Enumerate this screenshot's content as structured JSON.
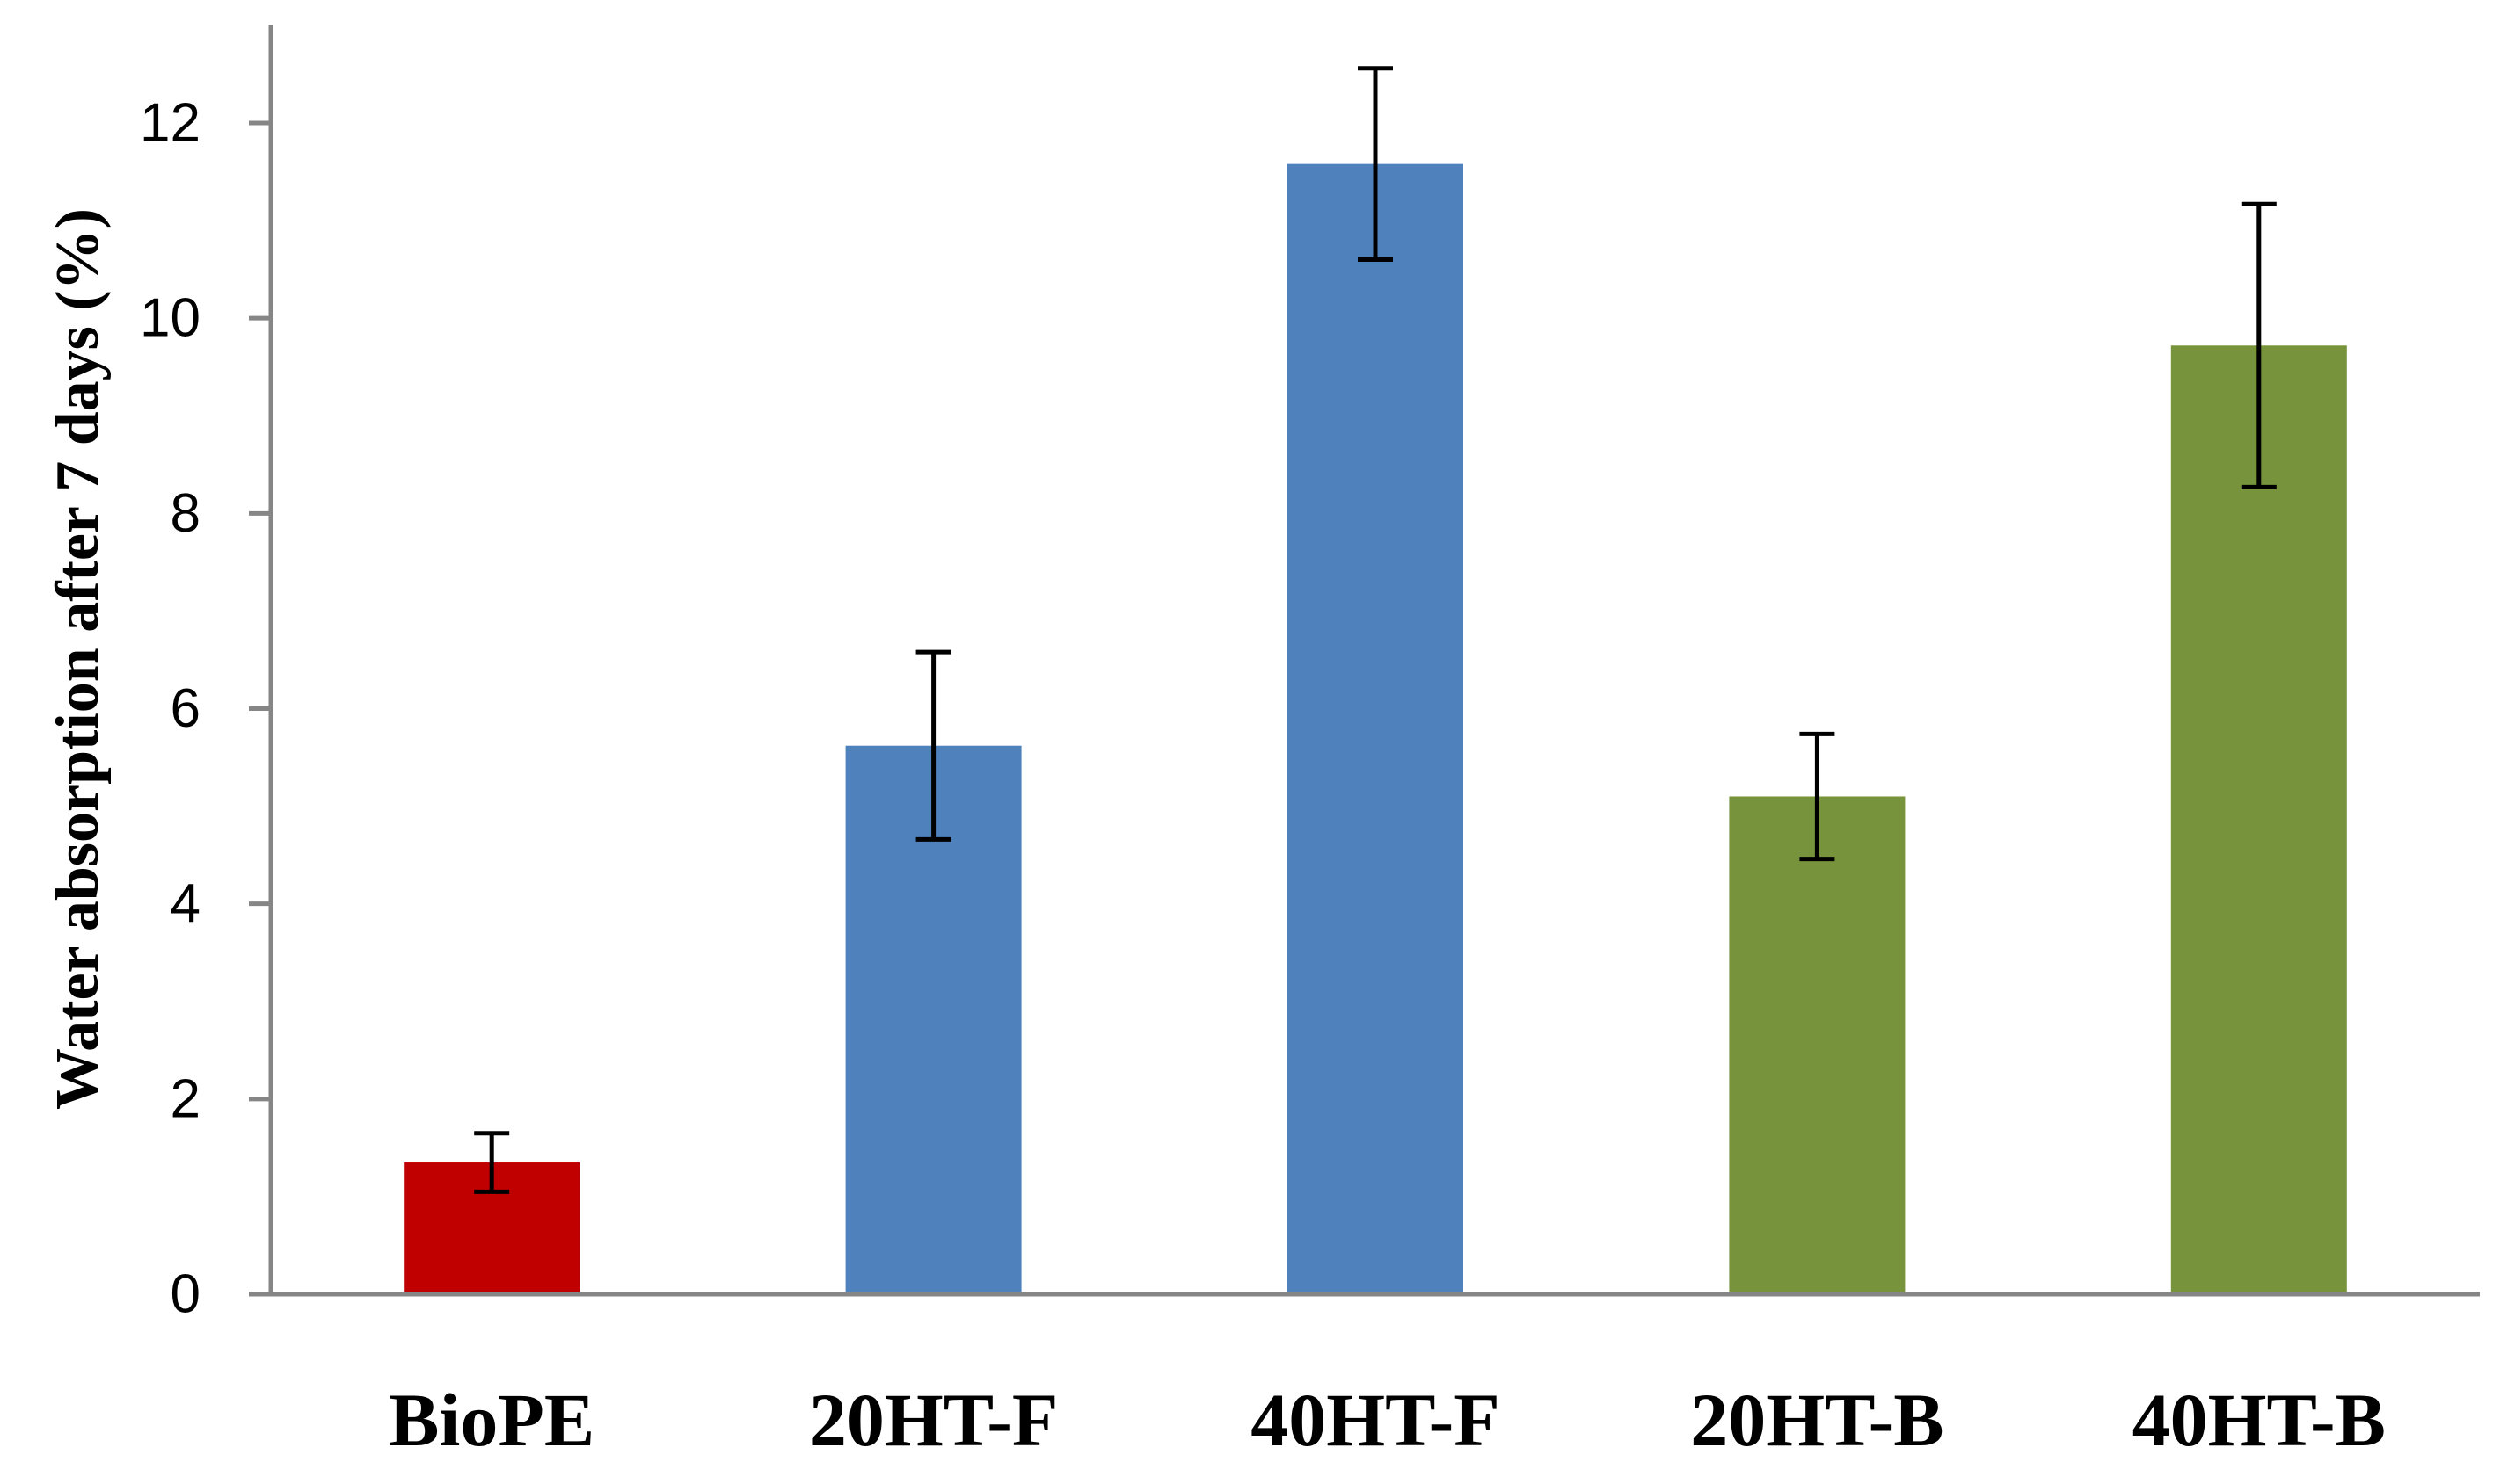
{
  "chart_data": {
    "type": "bar",
    "title": "",
    "xlabel": "",
    "ylabel": "Water absorption after 7 days (%)",
    "ylim": [
      0,
      13
    ],
    "yticks": [
      0,
      2,
      4,
      6,
      8,
      10,
      12
    ],
    "grid": false,
    "legend": "none",
    "categories": [
      "BioPE",
      "20HT-F",
      "40HT-F",
      "20HT-B",
      "40HT-B"
    ],
    "values": [
      1.35,
      5.62,
      11.58,
      5.1,
      9.72
    ],
    "errors": [
      0.3,
      0.96,
      0.98,
      0.64,
      1.45
    ],
    "colors": [
      "#C00000",
      "#4F81BD",
      "#4F81BD",
      "#77933C",
      "#77933C"
    ]
  }
}
